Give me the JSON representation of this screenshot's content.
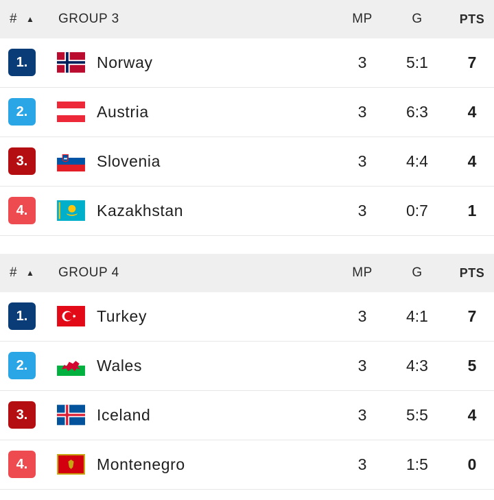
{
  "groups": [
    {
      "header": {
        "rank": "#",
        "sort_icon": "sort-up-icon",
        "title": "GROUP 3",
        "mp": "MP",
        "g": "G",
        "pts": "PTS"
      },
      "rows": [
        {
          "rank": "1.",
          "rank_color": "#0a3d78",
          "flag": "norway-flag-icon",
          "team": "Norway",
          "mp": "3",
          "g": "5:1",
          "pts": "7"
        },
        {
          "rank": "2.",
          "rank_color": "#2aa6e6",
          "flag": "austria-flag-icon",
          "team": "Austria",
          "mp": "3",
          "g": "6:3",
          "pts": "4"
        },
        {
          "rank": "3.",
          "rank_color": "#b50e12",
          "flag": "slovenia-flag-icon",
          "team": "Slovenia",
          "mp": "3",
          "g": "4:4",
          "pts": "4"
        },
        {
          "rank": "4.",
          "rank_color": "#ee4b50",
          "flag": "kazakhstan-flag-icon",
          "team": "Kazakhstan",
          "mp": "3",
          "g": "0:7",
          "pts": "1"
        }
      ]
    },
    {
      "header": {
        "rank": "#",
        "sort_icon": "sort-up-icon",
        "title": "GROUP 4",
        "mp": "MP",
        "g": "G",
        "pts": "PTS"
      },
      "rows": [
        {
          "rank": "1.",
          "rank_color": "#0a3d78",
          "flag": "turkey-flag-icon",
          "team": "Turkey",
          "mp": "3",
          "g": "4:1",
          "pts": "7"
        },
        {
          "rank": "2.",
          "rank_color": "#2aa6e6",
          "flag": "wales-flag-icon",
          "team": "Wales",
          "mp": "3",
          "g": "4:3",
          "pts": "5"
        },
        {
          "rank": "3.",
          "rank_color": "#b50e12",
          "flag": "iceland-flag-icon",
          "team": "Iceland",
          "mp": "3",
          "g": "5:5",
          "pts": "4"
        },
        {
          "rank": "4.",
          "rank_color": "#ee4b50",
          "flag": "montenegro-flag-icon",
          "team": "Montenegro",
          "mp": "3",
          "g": "1:5",
          "pts": "0"
        }
      ]
    }
  ]
}
